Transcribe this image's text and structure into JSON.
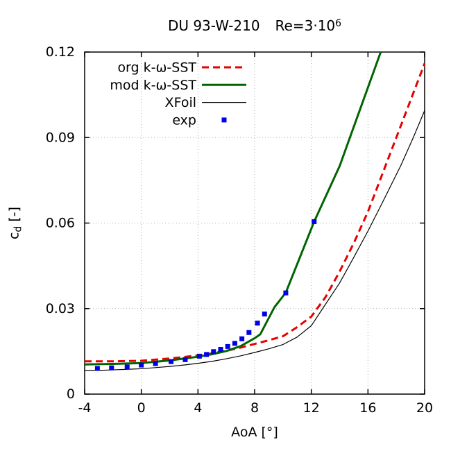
{
  "page": {
    "background": "#ffffff"
  },
  "colors": {
    "grid": "#b0b0b0",
    "axis": "#000000",
    "text": "#000000"
  },
  "chart_data": {
    "type": "line",
    "title": "DU 93-W-210   Re=3·10⁶",
    "title_parts": {
      "main": "DU 93-W-210",
      "re_base": "Re=3·10",
      "re_sup": "6"
    },
    "xlabel": "AoA [°]",
    "ylabel": "c_d [-]",
    "ylabel_parts": {
      "base": "c",
      "sub": "d",
      "suffix": " [-]"
    },
    "xlim": [
      -4,
      20
    ],
    "ylim": [
      0,
      0.12
    ],
    "xticks": [
      {
        "v": -4,
        "label": "-4"
      },
      {
        "v": 0,
        "label": "0"
      },
      {
        "v": 4,
        "label": "4"
      },
      {
        "v": 8,
        "label": "8"
      },
      {
        "v": 12,
        "label": "12"
      },
      {
        "v": 16,
        "label": "16"
      },
      {
        "v": 20,
        "label": "20"
      }
    ],
    "yticks": [
      {
        "v": 0,
        "label": "0"
      },
      {
        "v": 0.03,
        "label": "0.03"
      },
      {
        "v": 0.06,
        "label": "0.06"
      },
      {
        "v": 0.09,
        "label": "0.09"
      },
      {
        "v": 0.12,
        "label": "0.12"
      }
    ],
    "grid": true,
    "legend": {
      "position": "top-left-inside",
      "entries": [
        "org k-ω-SST",
        "mod k-ω-SST",
        "XFoil",
        "exp"
      ]
    },
    "series": [
      {
        "name": "org k-ω-SST",
        "type": "line",
        "style": "dashed",
        "color": "#e60000",
        "width": 3,
        "points": [
          [
            -4,
            0.0115
          ],
          [
            -3,
            0.0115
          ],
          [
            -2,
            0.0115
          ],
          [
            -1,
            0.0116
          ],
          [
            0,
            0.0117
          ],
          [
            1,
            0.0121
          ],
          [
            2,
            0.0125
          ],
          [
            3,
            0.013
          ],
          [
            4,
            0.0136
          ],
          [
            5,
            0.0143
          ],
          [
            6,
            0.0152
          ],
          [
            7,
            0.0163
          ],
          [
            8,
            0.0176
          ],
          [
            9,
            0.0189
          ],
          [
            10,
            0.0203
          ],
          [
            11,
            0.0235
          ],
          [
            12,
            0.0272
          ],
          [
            13,
            0.034
          ],
          [
            14,
            0.043
          ],
          [
            15,
            0.053
          ],
          [
            16,
            0.064
          ],
          [
            17,
            0.077
          ],
          [
            18,
            0.09
          ],
          [
            19,
            0.103
          ],
          [
            20,
            0.116
          ]
        ]
      },
      {
        "name": "mod k-ω-SST",
        "type": "line",
        "style": "solid",
        "color": "#006400",
        "width": 3,
        "points": [
          [
            -4,
            0.0104
          ],
          [
            -2,
            0.0106
          ],
          [
            0,
            0.0109
          ],
          [
            2,
            0.0118
          ],
          [
            4,
            0.0131
          ],
          [
            5,
            0.014
          ],
          [
            6,
            0.0151
          ],
          [
            7,
            0.0168
          ],
          [
            8,
            0.0196
          ],
          [
            8.4,
            0.021
          ],
          [
            9.4,
            0.0305
          ],
          [
            10.2,
            0.0356
          ],
          [
            12.2,
            0.0605
          ],
          [
            14,
            0.08
          ],
          [
            16.9,
            0.12
          ]
        ]
      },
      {
        "name": "XFoil",
        "type": "line",
        "style": "solid",
        "color": "#000000",
        "width": 1.2,
        "points": [
          [
            -4,
            0.0083
          ],
          [
            -3,
            0.0083
          ],
          [
            -2,
            0.0085
          ],
          [
            -1,
            0.0087
          ],
          [
            0,
            0.0089
          ],
          [
            1,
            0.0093
          ],
          [
            2,
            0.0097
          ],
          [
            3,
            0.0102
          ],
          [
            4,
            0.0108
          ],
          [
            5,
            0.0115
          ],
          [
            6,
            0.0124
          ],
          [
            7,
            0.0134
          ],
          [
            8,
            0.0146
          ],
          [
            9,
            0.0159
          ],
          [
            10,
            0.0174
          ],
          [
            11,
            0.02
          ],
          [
            12,
            0.024
          ],
          [
            12.8,
            0.03
          ],
          [
            14,
            0.039
          ],
          [
            15,
            0.048
          ],
          [
            16,
            0.0572
          ],
          [
            17,
            0.067
          ],
          [
            18.3,
            0.08
          ],
          [
            19.2,
            0.09
          ],
          [
            20,
            0.0995
          ]
        ]
      },
      {
        "name": "exp",
        "type": "points",
        "style": "points",
        "color": "#0000e6",
        "marker": "square",
        "marker_size": 7,
        "points": [
          [
            -3.1,
            0.009
          ],
          [
            -2.1,
            0.0092
          ],
          [
            -1,
            0.0095
          ],
          [
            0,
            0.0102
          ],
          [
            1,
            0.0107
          ],
          [
            2.1,
            0.0114
          ],
          [
            3.1,
            0.0121
          ],
          [
            4.1,
            0.0133
          ],
          [
            4.6,
            0.0139
          ],
          [
            5.1,
            0.0149
          ],
          [
            5.6,
            0.0157
          ],
          [
            6.1,
            0.0167
          ],
          [
            6.6,
            0.0178
          ],
          [
            7.1,
            0.0194
          ],
          [
            7.6,
            0.0216
          ],
          [
            8.2,
            0.0249
          ],
          [
            8.7,
            0.0281
          ],
          [
            10.2,
            0.0355
          ],
          [
            12.2,
            0.0605
          ]
        ]
      }
    ]
  }
}
